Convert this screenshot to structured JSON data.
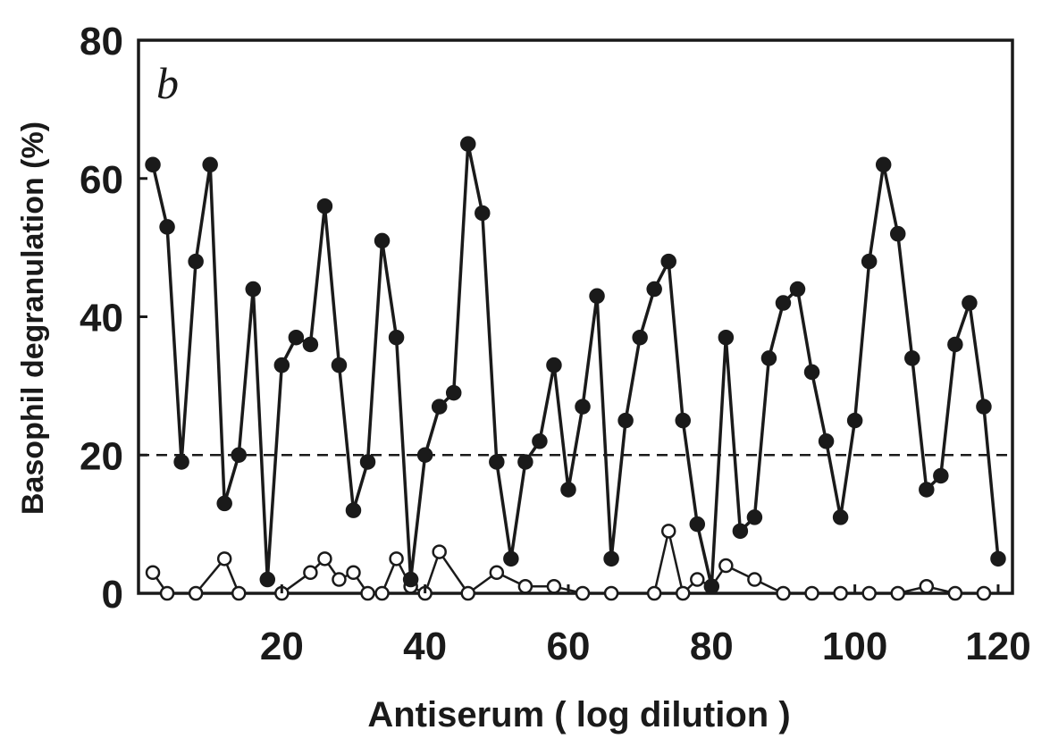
{
  "chart_data": {
    "type": "line",
    "panel_label": "b",
    "xlabel": "Antiserum   ( log dilution )",
    "ylabel": "Basophil degranulation (%)",
    "xlim": [
      0,
      122
    ],
    "ylim": [
      0,
      80
    ],
    "x_ticks": [
      20,
      40,
      60,
      80,
      100,
      120
    ],
    "y_ticks": [
      0,
      20,
      40,
      60,
      80
    ],
    "threshold": 20,
    "grid": false,
    "series": [
      {
        "marker": "filled-circle",
        "x": [
          2,
          4,
          6,
          8,
          10,
          12,
          14,
          16,
          18,
          20,
          22,
          24,
          26,
          28,
          30,
          32,
          34,
          36,
          38,
          40,
          42,
          44,
          46,
          48,
          50,
          52,
          54,
          56,
          58,
          60,
          62,
          64,
          66,
          68,
          70,
          72,
          74,
          76,
          78,
          80,
          82,
          84,
          86,
          88,
          90,
          92,
          94,
          96,
          98,
          100,
          102,
          104,
          106,
          108,
          110,
          112,
          114,
          116,
          118,
          120
        ],
        "values": [
          62,
          53,
          19,
          48,
          62,
          13,
          20,
          44,
          2,
          33,
          37,
          36,
          56,
          33,
          12,
          19,
          51,
          37,
          2,
          20,
          27,
          29,
          65,
          55,
          19,
          5,
          19,
          22,
          33,
          15,
          27,
          43,
          5,
          25,
          37,
          44,
          48,
          25,
          10,
          1,
          37,
          9,
          11,
          34,
          42,
          44,
          32,
          22,
          11,
          25,
          48,
          62,
          52,
          34,
          15,
          17,
          36,
          42,
          27,
          5
        ]
      },
      {
        "marker": "open-circle",
        "x": [
          2,
          4,
          8,
          12,
          14,
          20,
          24,
          26,
          28,
          30,
          32,
          34,
          36,
          38,
          40,
          42,
          46,
          50,
          54,
          58,
          62,
          66,
          72,
          74,
          76,
          78,
          80,
          82,
          86,
          90,
          94,
          98,
          102,
          106,
          110,
          114,
          118
        ],
        "values": [
          3,
          0,
          0,
          5,
          0,
          0,
          3,
          5,
          2,
          3,
          0,
          0,
          5,
          1,
          0,
          6,
          0,
          3,
          1,
          1,
          0,
          0,
          0,
          9,
          0,
          2,
          1,
          4,
          2,
          0,
          0,
          0,
          0,
          0,
          1,
          0,
          0
        ]
      }
    ]
  }
}
